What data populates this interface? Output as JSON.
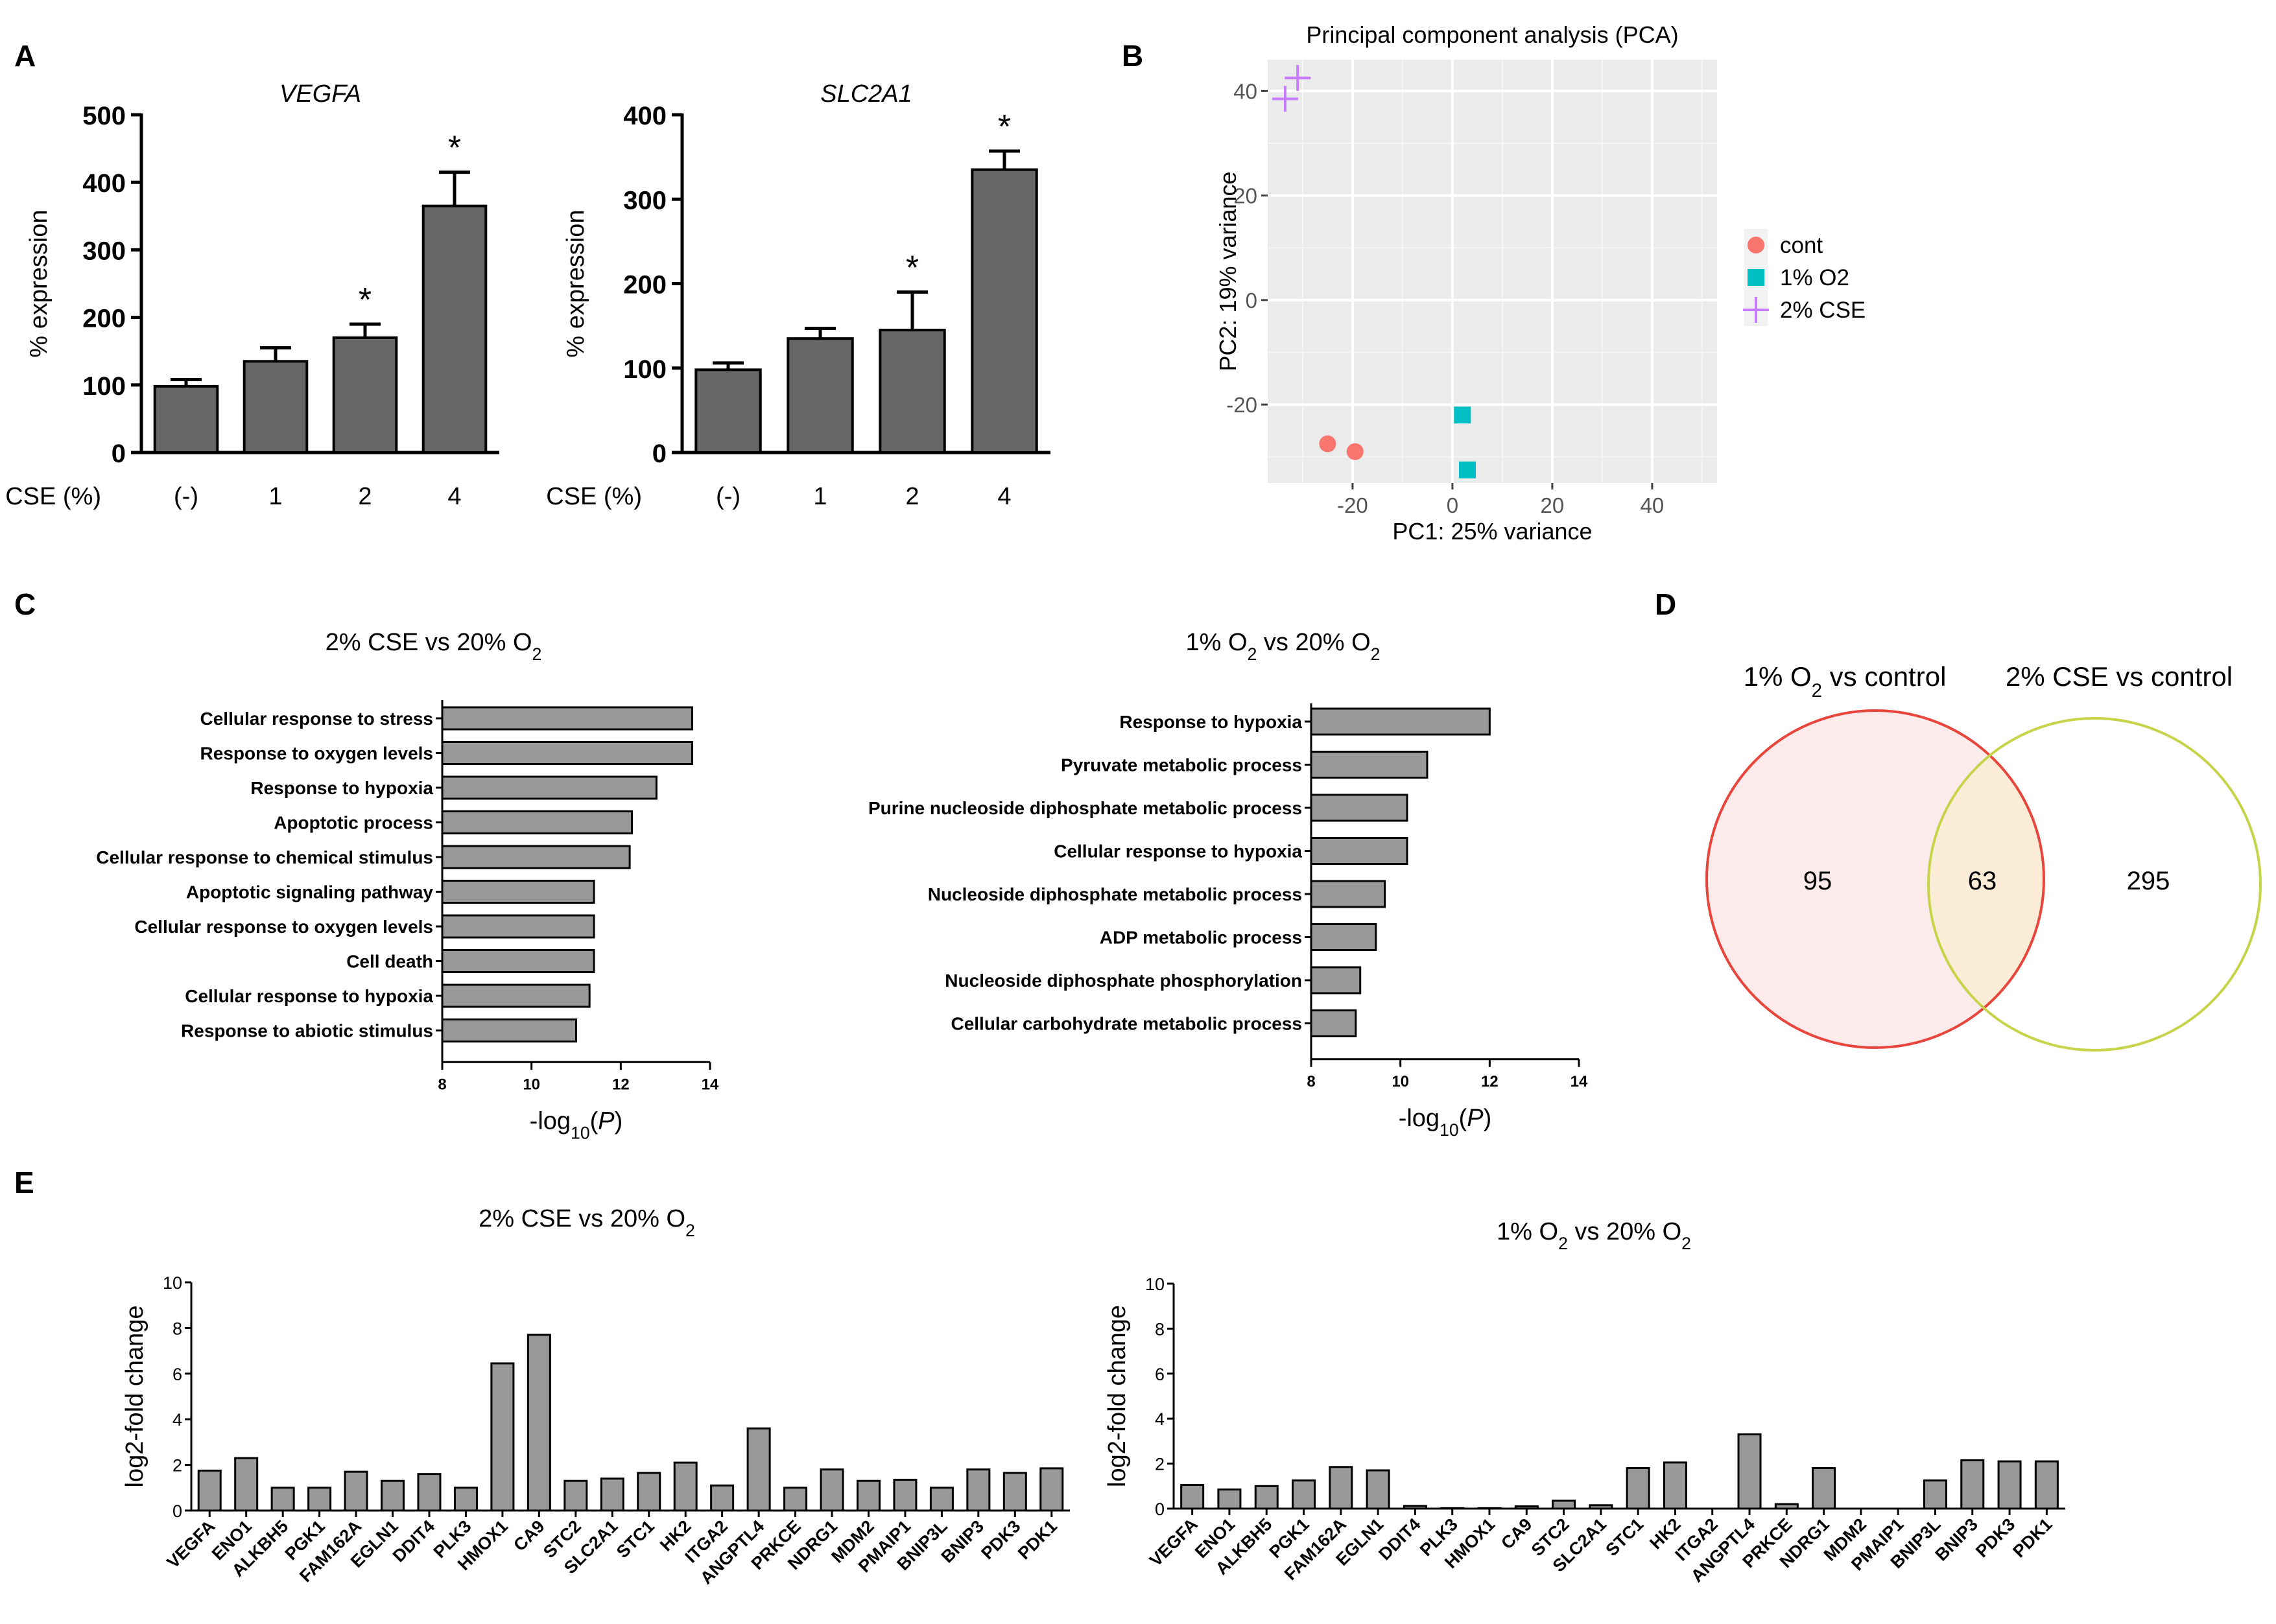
{
  "panels": {
    "A": "A",
    "B": "B",
    "C": "C",
    "D": "D",
    "E": "E"
  },
  "chart_data": [
    {
      "id": "A1",
      "type": "bar",
      "title": "VEGFA",
      "xlabel": "CSE (%)",
      "ylabel": "% expression",
      "categories": [
        "(-)",
        "1",
        "2",
        "4"
      ],
      "values": [
        98,
        135,
        170,
        365
      ],
      "errors": [
        10,
        20,
        20,
        50
      ],
      "significant": [
        false,
        false,
        true,
        true
      ],
      "sig_marker": "*",
      "ylim": [
        0,
        500
      ],
      "yticks": [
        "0",
        "100",
        "200",
        "300",
        "400",
        "500"
      ]
    },
    {
      "id": "A2",
      "type": "bar",
      "title": "SLC2A1",
      "xlabel": "CSE (%)",
      "ylabel": "% expression",
      "categories": [
        "(-)",
        "1",
        "2",
        "4"
      ],
      "values": [
        98,
        135,
        145,
        335
      ],
      "errors": [
        8,
        12,
        45,
        22
      ],
      "significant": [
        false,
        false,
        true,
        true
      ],
      "sig_marker": "*",
      "ylim": [
        0,
        400
      ],
      "yticks": [
        "0",
        "100",
        "200",
        "300",
        "400"
      ]
    },
    {
      "id": "B",
      "type": "scatter",
      "title": "Principal component analysis (PCA)",
      "xlabel": "PC1: 25% variance",
      "ylabel": "PC2: 19% variance",
      "xlim": [
        -37,
        53
      ],
      "ylim": [
        -35,
        46
      ],
      "xticks": [
        "-20",
        "0",
        "20",
        "40"
      ],
      "yticks": [
        "-20",
        "0",
        "20",
        "40"
      ],
      "series": [
        {
          "name": "cont",
          "color": "#f8766d",
          "marker": "circle",
          "points": [
            [
              -25,
              -27.5
            ],
            [
              -19.5,
              -29
            ]
          ]
        },
        {
          "name": "1% O2",
          "color": "#00bfc4",
          "marker": "square",
          "points": [
            [
              2,
              -22
            ],
            [
              3,
              -32.5
            ]
          ]
        },
        {
          "name": "2% CSE",
          "color": "#c77cff",
          "marker": "plus",
          "points": [
            [
              -33.5,
              38.5
            ],
            [
              -31,
              42.5
            ]
          ]
        }
      ]
    },
    {
      "id": "C1",
      "type": "bar",
      "orientation": "horizontal",
      "title_parts": [
        "2% CSE vs 20% O",
        "2"
      ],
      "xlabel_parts": [
        "-log",
        "10",
        "(",
        "P",
        ")"
      ],
      "xlim": [
        8,
        14
      ],
      "xticks": [
        "8",
        "10",
        "12",
        "14"
      ],
      "categories": [
        "Cellular response to stress",
        "Response to oxygen levels",
        "Response to hypoxia",
        "Apoptotic process",
        "Cellular response to chemical stimulus",
        "Apoptotic signaling pathway",
        "Cellular response to oxygen levels",
        "Cell death",
        "Cellular response to hypoxia",
        "Response to abiotic stimulus"
      ],
      "values": [
        13.6,
        13.6,
        12.8,
        12.25,
        12.2,
        11.4,
        11.4,
        11.4,
        11.3,
        11.0
      ]
    },
    {
      "id": "C2",
      "type": "bar",
      "orientation": "horizontal",
      "title_parts": [
        "1% O",
        "2",
        " vs 20% O",
        "2"
      ],
      "xlabel_parts": [
        "-log",
        "10",
        "(",
        "P",
        ")"
      ],
      "xlim": [
        8,
        14
      ],
      "xticks": [
        "8",
        "10",
        "12",
        "14"
      ],
      "categories": [
        "Response to hypoxia",
        "Pyruvate metabolic process",
        "Purine nucleoside diphosphate metabolic process",
        "Cellular response to hypoxia",
        "Nucleoside diphosphate metabolic process",
        "ADP metabolic process",
        "Nucleoside diphosphate phosphorylation",
        "Cellular carbohydrate metabolic process"
      ],
      "values": [
        12.0,
        10.6,
        10.15,
        10.15,
        9.65,
        9.45,
        9.1,
        9.0
      ]
    },
    {
      "id": "D",
      "type": "venn",
      "sets": [
        {
          "label_parts": [
            "1% O",
            "2",
            " vs control"
          ],
          "only": "95",
          "color": "#e8453c",
          "fill": "#fdeaea"
        },
        {
          "label_parts": [
            "2% CSE vs control"
          ],
          "only": "295",
          "color": "#c5d44a",
          "fill": "#ffffff"
        }
      ],
      "overlap": "63",
      "overlap_fill": "#fbecd8"
    },
    {
      "id": "E1",
      "type": "bar",
      "title_parts": [
        "2% CSE vs 20% O",
        "2"
      ],
      "ylabel": "log2-fold change",
      "ylim": [
        0,
        10
      ],
      "yticks": [
        "0",
        "2",
        "4",
        "6",
        "8",
        "10"
      ],
      "categories": [
        "VEGFA",
        "ENO1",
        "ALKBH5",
        "PGK1",
        "FAM162A",
        "EGLN1",
        "DDIT4",
        "PLK3",
        "HMOX1",
        "CA9",
        "STC2",
        "SLC2A1",
        "STC1",
        "HK2",
        "ITGA2",
        "ANGPTL4",
        "PRKCE",
        "NDRG1",
        "MDM2",
        "PMAIP1",
        "BNIP3L",
        "BNIP3",
        "PDK3",
        "PDK1"
      ],
      "values": [
        1.75,
        2.3,
        1.0,
        1.0,
        1.7,
        1.3,
        1.6,
        1.0,
        6.45,
        7.7,
        1.3,
        1.4,
        1.65,
        2.1,
        1.1,
        3.6,
        1.0,
        1.8,
        1.3,
        1.35,
        1.0,
        1.8,
        1.65,
        1.85
      ]
    },
    {
      "id": "E2",
      "type": "bar",
      "title_parts": [
        "1% O",
        "2",
        " vs 20% O",
        "2"
      ],
      "ylabel": "log2-fold change",
      "ylim": [
        0,
        10
      ],
      "yticks": [
        "0",
        "2",
        "4",
        "6",
        "8",
        "10"
      ],
      "categories": [
        "VEGFA",
        "ENO1",
        "ALKBH5",
        "PGK1",
        "FAM162A",
        "EGLN1",
        "DDIT4",
        "PLK3",
        "HMOX1",
        "CA9",
        "STC2",
        "SLC2A1",
        "STC1",
        "HK2",
        "ITGA2",
        "ANGPTL4",
        "PRKCE",
        "NDRG1",
        "MDM2",
        "PMAIP1",
        "BNIP3L",
        "BNIP3",
        "PDK3",
        "PDK1"
      ],
      "values": [
        1.05,
        0.85,
        1.0,
        1.25,
        1.85,
        1.7,
        0.12,
        0.02,
        0.02,
        0.1,
        0.35,
        0.15,
        1.8,
        2.05,
        0.0,
        3.3,
        0.2,
        1.8,
        0.0,
        0.0,
        1.25,
        2.15,
        2.1,
        2.1
      ]
    }
  ]
}
